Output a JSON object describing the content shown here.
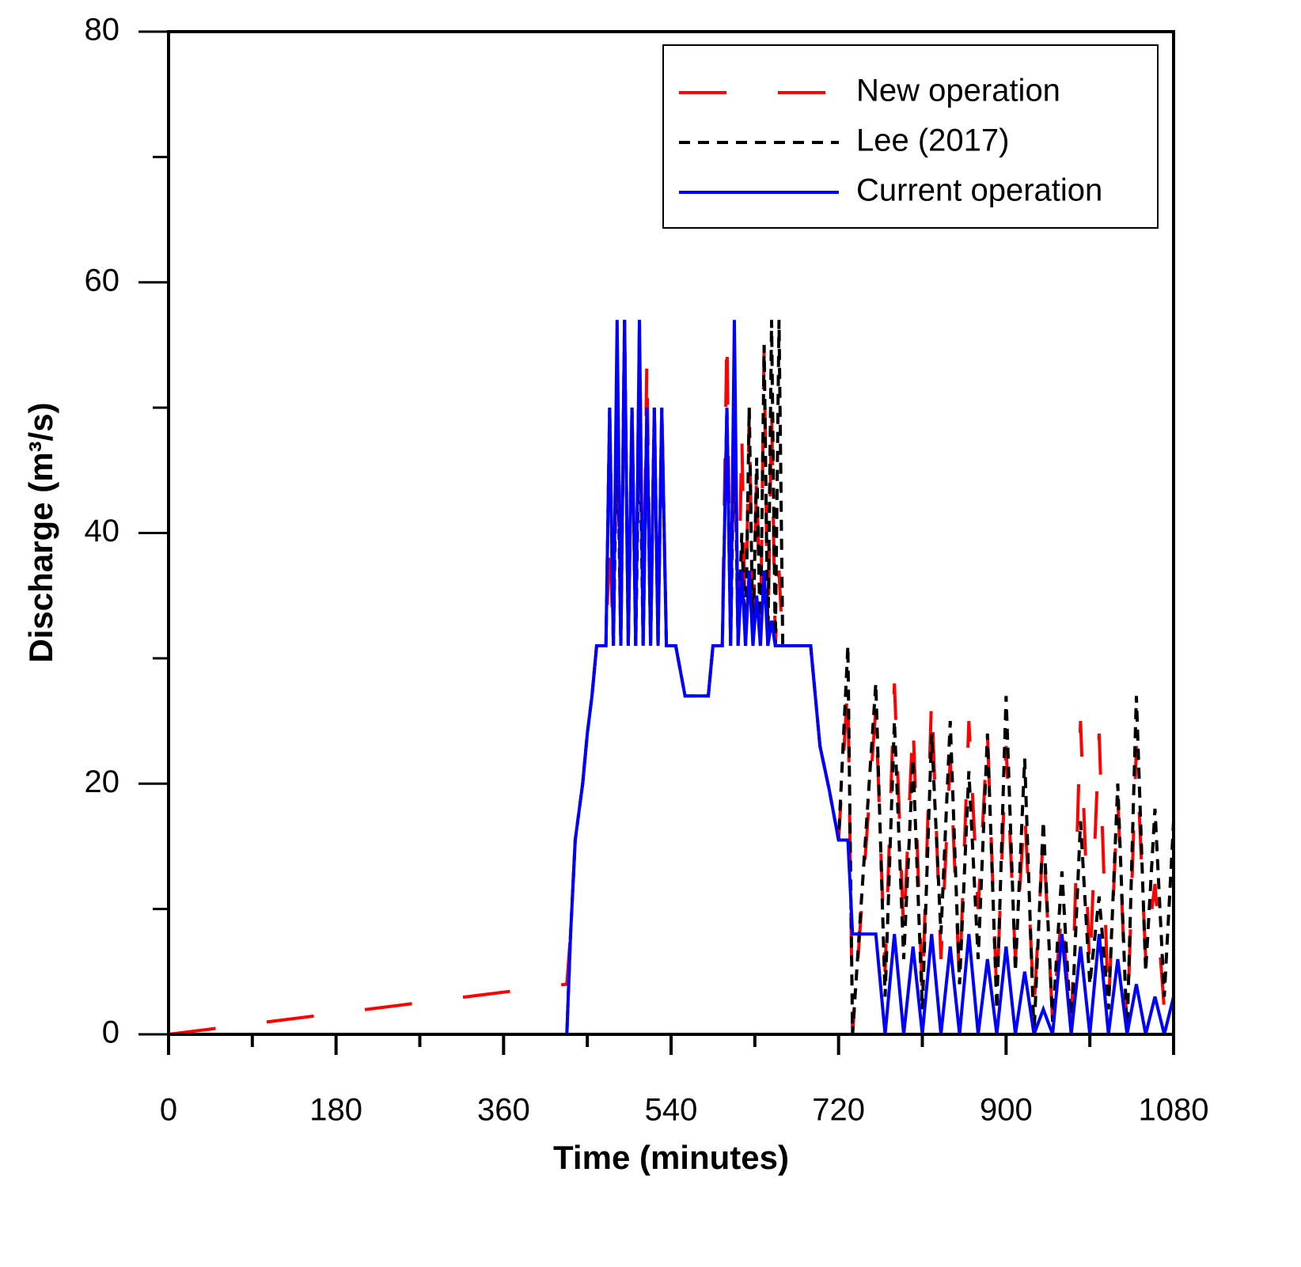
{
  "chart_data": {
    "type": "line",
    "xlabel": "Time (minutes)",
    "ylabel": "Discharge (m³/s)",
    "x": [
      0,
      428,
      432,
      437,
      445,
      450,
      455,
      460,
      470,
      474,
      478,
      482,
      486,
      490,
      494,
      498,
      502,
      506,
      510,
      514,
      518,
      522,
      526,
      530,
      535,
      545,
      555,
      580,
      585,
      595,
      600,
      604,
      608,
      612,
      616,
      620,
      624,
      628,
      632,
      636,
      640,
      644,
      648,
      652,
      656,
      660,
      690,
      695,
      700,
      710,
      720,
      730,
      735,
      760,
      770,
      780,
      790,
      800,
      810,
      820,
      830,
      840,
      850,
      860,
      870,
      880,
      890,
      900,
      910,
      920,
      930,
      940,
      950,
      960,
      970,
      980,
      990,
      1000,
      1010,
      1020,
      1030,
      1040,
      1050,
      1060,
      1070,
      1080
    ],
    "series": [
      {
        "name": "New operation",
        "color": "#ff0000",
        "dash": "long",
        "values": [
          0,
          4,
          8,
          15.5,
          20,
          24,
          27,
          31,
          31,
          40,
          31,
          50,
          31,
          57,
          31,
          50,
          31,
          57,
          31,
          54,
          31,
          50,
          31,
          50,
          31,
          31,
          27,
          27,
          31,
          31,
          56,
          31,
          50,
          31,
          48,
          31,
          50,
          31,
          45,
          31,
          55,
          31,
          50,
          31,
          37,
          31,
          31,
          27,
          23,
          19.5,
          15.5,
          28,
          0,
          26,
          5,
          28,
          8,
          25,
          3,
          27,
          6,
          22,
          4,
          25,
          10,
          24,
          3,
          23,
          6,
          18,
          2,
          16,
          1,
          10,
          0,
          25,
          5,
          24,
          2,
          19,
          0,
          23,
          6,
          12,
          2,
          5
        ]
      },
      {
        "name": "Lee (2017)",
        "color": "#000000",
        "dash": "short",
        "values": [
          0,
          0,
          8,
          15.5,
          20,
          24,
          27,
          31,
          31,
          50,
          31,
          50,
          31,
          57,
          31,
          50,
          31,
          50,
          31,
          50,
          31,
          50,
          31,
          50,
          31,
          31,
          27,
          27,
          31,
          31,
          50,
          31,
          50,
          31,
          40,
          31,
          50,
          31,
          46,
          31,
          55,
          31,
          57,
          31,
          57,
          31,
          31,
          27,
          23,
          19.5,
          15.5,
          31,
          0,
          28,
          3,
          25,
          6,
          22,
          2,
          24,
          8,
          25,
          4,
          21,
          6,
          24,
          2,
          27,
          5,
          22,
          0,
          17,
          1,
          13,
          0,
          17,
          4,
          11,
          2,
          20,
          0,
          27,
          5,
          18,
          3,
          17
        ]
      },
      {
        "name": "Current operation",
        "color": "#0000ff",
        "dash": "solid",
        "values": [
          0,
          0,
          8,
          15.5,
          20,
          24,
          27,
          31,
          31,
          50,
          31,
          57,
          31,
          57,
          31,
          50,
          31,
          57,
          31,
          50,
          31,
          50,
          31,
          50,
          31,
          31,
          27,
          27,
          31,
          31,
          50,
          31,
          57,
          31,
          37,
          31,
          37,
          31,
          35,
          31,
          37,
          31,
          33,
          31,
          31,
          31,
          31,
          27,
          23,
          19.5,
          15.5,
          15.5,
          8,
          8,
          0,
          8,
          0,
          7,
          0,
          8,
          0,
          7,
          0,
          8,
          0,
          6,
          0,
          7,
          0,
          5,
          0,
          2,
          0,
          8,
          0,
          7,
          0,
          8,
          0,
          6,
          0,
          4,
          0,
          3,
          0,
          3
        ]
      }
    ],
    "xlim": [
      0,
      1080
    ],
    "xticks": [
      0,
      180,
      360,
      540,
      720,
      900,
      1080
    ],
    "x_minor_ticks": [
      90,
      270,
      450,
      630,
      810,
      990
    ],
    "ylim": [
      0,
      80
    ],
    "yticks": [
      0,
      20,
      40,
      60,
      80
    ],
    "y_minor_ticks": [
      10,
      30,
      50,
      70
    ],
    "legend": "upper right",
    "grid": false
  }
}
